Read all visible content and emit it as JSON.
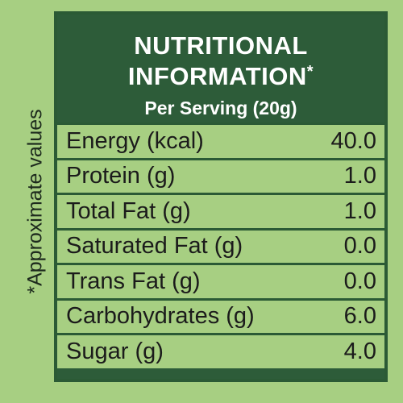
{
  "header": {
    "title_line1": "NUTRITIONAL",
    "title_line2": "INFORMATION",
    "title_mark": "*",
    "serving": "Per Serving (20g)"
  },
  "side_note": "*Approximate values",
  "table": {
    "rows": [
      [
        "Energy (kcal)",
        "40.0"
      ],
      [
        "Protein (g)",
        "1.0"
      ],
      [
        "Total Fat (g)",
        "1.0"
      ],
      [
        "Saturated Fat (g)",
        "0.0"
      ],
      [
        "Trans Fat (g)",
        "0.0"
      ],
      [
        "Carbohydrates (g)",
        "6.0"
      ],
      [
        "Sugar (g)",
        "4.0"
      ]
    ]
  }
}
